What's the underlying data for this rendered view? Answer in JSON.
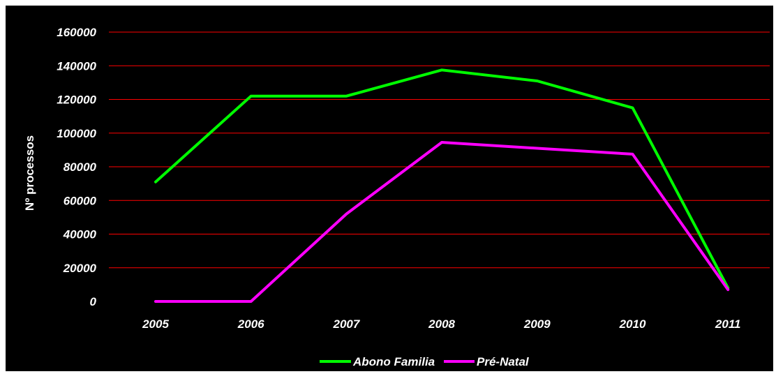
{
  "chart_data": {
    "type": "line",
    "categories": [
      "2005",
      "2006",
      "2007",
      "2008",
      "2009",
      "2010",
      "2011"
    ],
    "series": [
      {
        "name": "Abono Familia",
        "color": "#00ff00",
        "values": [
          71000,
          122000,
          122000,
          137500,
          131000,
          115000,
          8000
        ]
      },
      {
        "name": "Pré-Natal",
        "color": "#ff00ff",
        "values": [
          0,
          0,
          52000,
          94500,
          91000,
          87500,
          7000
        ]
      }
    ],
    "ylabel": "Nº processos",
    "ylim": [
      0,
      160000
    ],
    "yticks": [
      0,
      20000,
      40000,
      60000,
      80000,
      100000,
      120000,
      140000,
      160000
    ],
    "grid": true,
    "grid_color": "#ff0000",
    "background": "#000000",
    "legend_position": "bottom"
  }
}
